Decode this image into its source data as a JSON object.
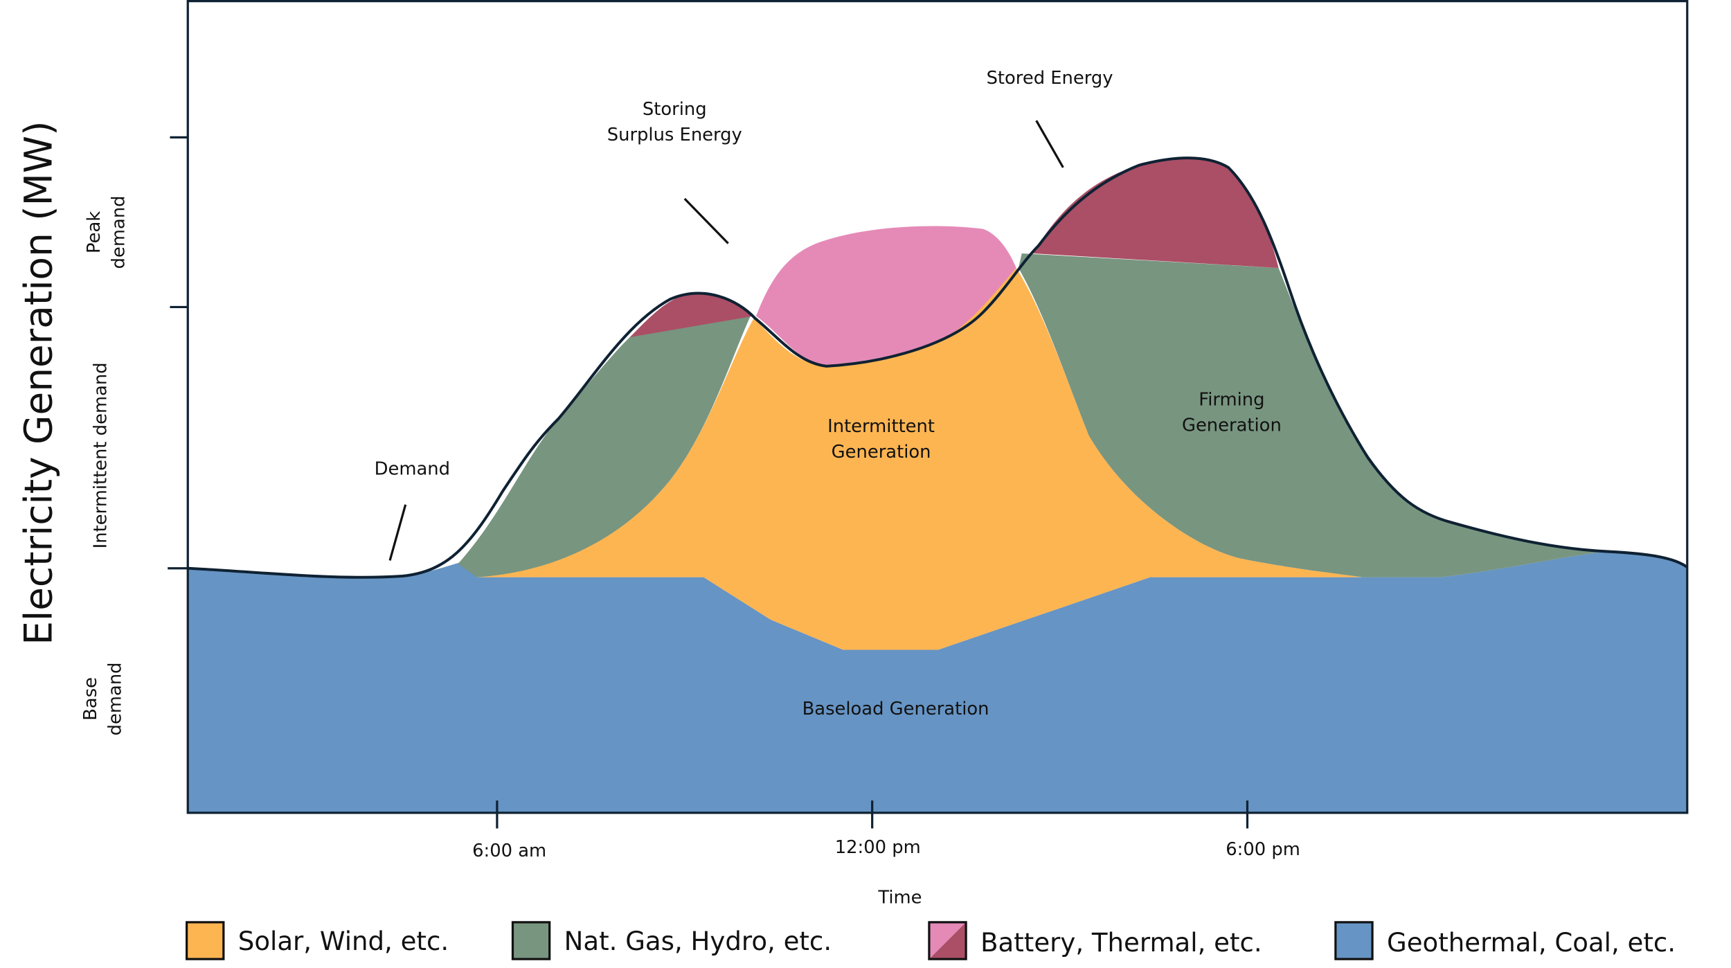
{
  "y_axis": {
    "title": "Electricity Generation (MW)",
    "bands": [
      [
        "Peak",
        "demand"
      ],
      [
        "Intermittent demand"
      ],
      [
        "Base",
        "demand"
      ]
    ]
  },
  "annotations": {
    "storing": [
      "Storing",
      "Surplus Energy"
    ],
    "stored": "Stored Energy",
    "demand": "Demand",
    "intermittent": [
      "Intermittent",
      "Generation"
    ],
    "firming": [
      "Firming",
      "Generation"
    ],
    "baseload": "Baseload Generation"
  },
  "x_axis": {
    "title": "Time",
    "ticks": [
      "6:00 am",
      "12:00 pm",
      "6:00 pm"
    ]
  },
  "legend": [
    "Solar, Wind, etc.",
    "Nat. Gas, Hydro, etc.",
    "Battery, Thermal, etc.",
    "Geothermal, Coal, etc."
  ]
}
